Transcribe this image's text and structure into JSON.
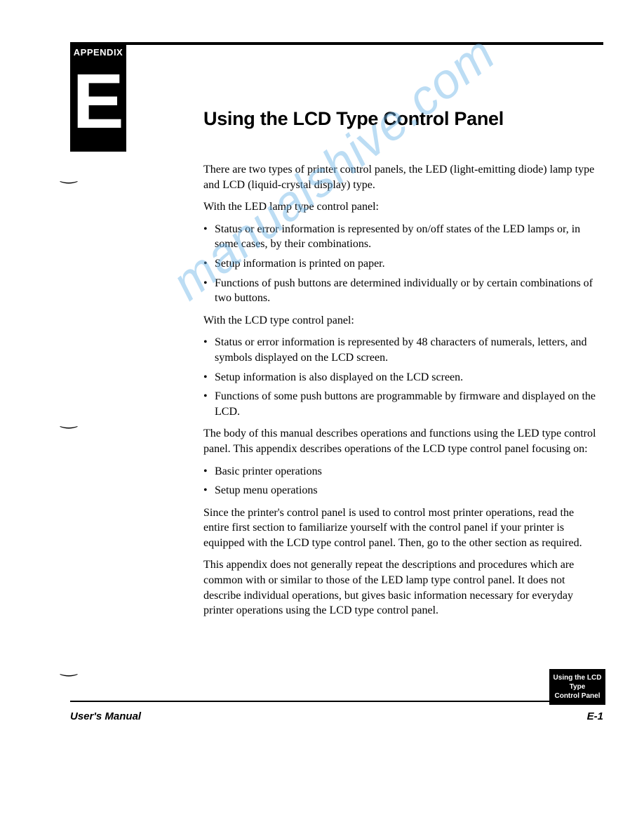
{
  "appendix": {
    "label": "APPENDIX",
    "letter": "E"
  },
  "title": "Using the LCD Type Control Panel",
  "para1": "There are two types of printer control panels, the LED (light-emitting diode) lamp type and LCD (liquid-crystal display) type.",
  "para2": "With the LED lamp type control panel:",
  "led_bullets": [
    "Status or error information is represented by on/off states of the LED lamps or, in some cases, by their combinations.",
    "Setup information is printed on paper.",
    "Functions of push buttons are determined individually or by certain combinations of two buttons."
  ],
  "para3": "With the LCD type control panel:",
  "lcd_bullets": [
    "Status or error information is represented by 48 characters of numerals, letters, and symbols displayed on the LCD screen.",
    "Setup information is also displayed on the LCD screen.",
    "Functions of some push buttons are programmable by firmware and displayed on the LCD."
  ],
  "para4": "The body of this manual describes operations and functions using the LED type control panel. This appendix describes operations of the LCD type control panel focusing on:",
  "focus_bullets": [
    "Basic printer operations",
    "Setup menu operations"
  ],
  "para5": "Since the printer's control panel is used to control most printer operations, read the entire first section to familiarize yourself with the control panel if your printer is equipped with the LCD type control panel. Then, go to the other section as required.",
  "para6": "This appendix does not generally repeat the descriptions and procedures which are common with or similar to those of the LED lamp type control panel. It does not describe individual operations, but gives basic information necessary for everyday printer operations using the LCD type control panel.",
  "side_tab": {
    "line1": "Using the LCD Type",
    "line2": "Control Panel"
  },
  "footer": {
    "left": "User's Manual",
    "right": "E-1"
  },
  "watermark": "manualshive.com",
  "colors": {
    "text": "#000000",
    "background": "#ffffff",
    "watermark": "#6db4e8"
  },
  "typography": {
    "title_font": "Arial",
    "title_size_pt": 20,
    "body_font": "Georgia",
    "body_size_pt": 12
  }
}
